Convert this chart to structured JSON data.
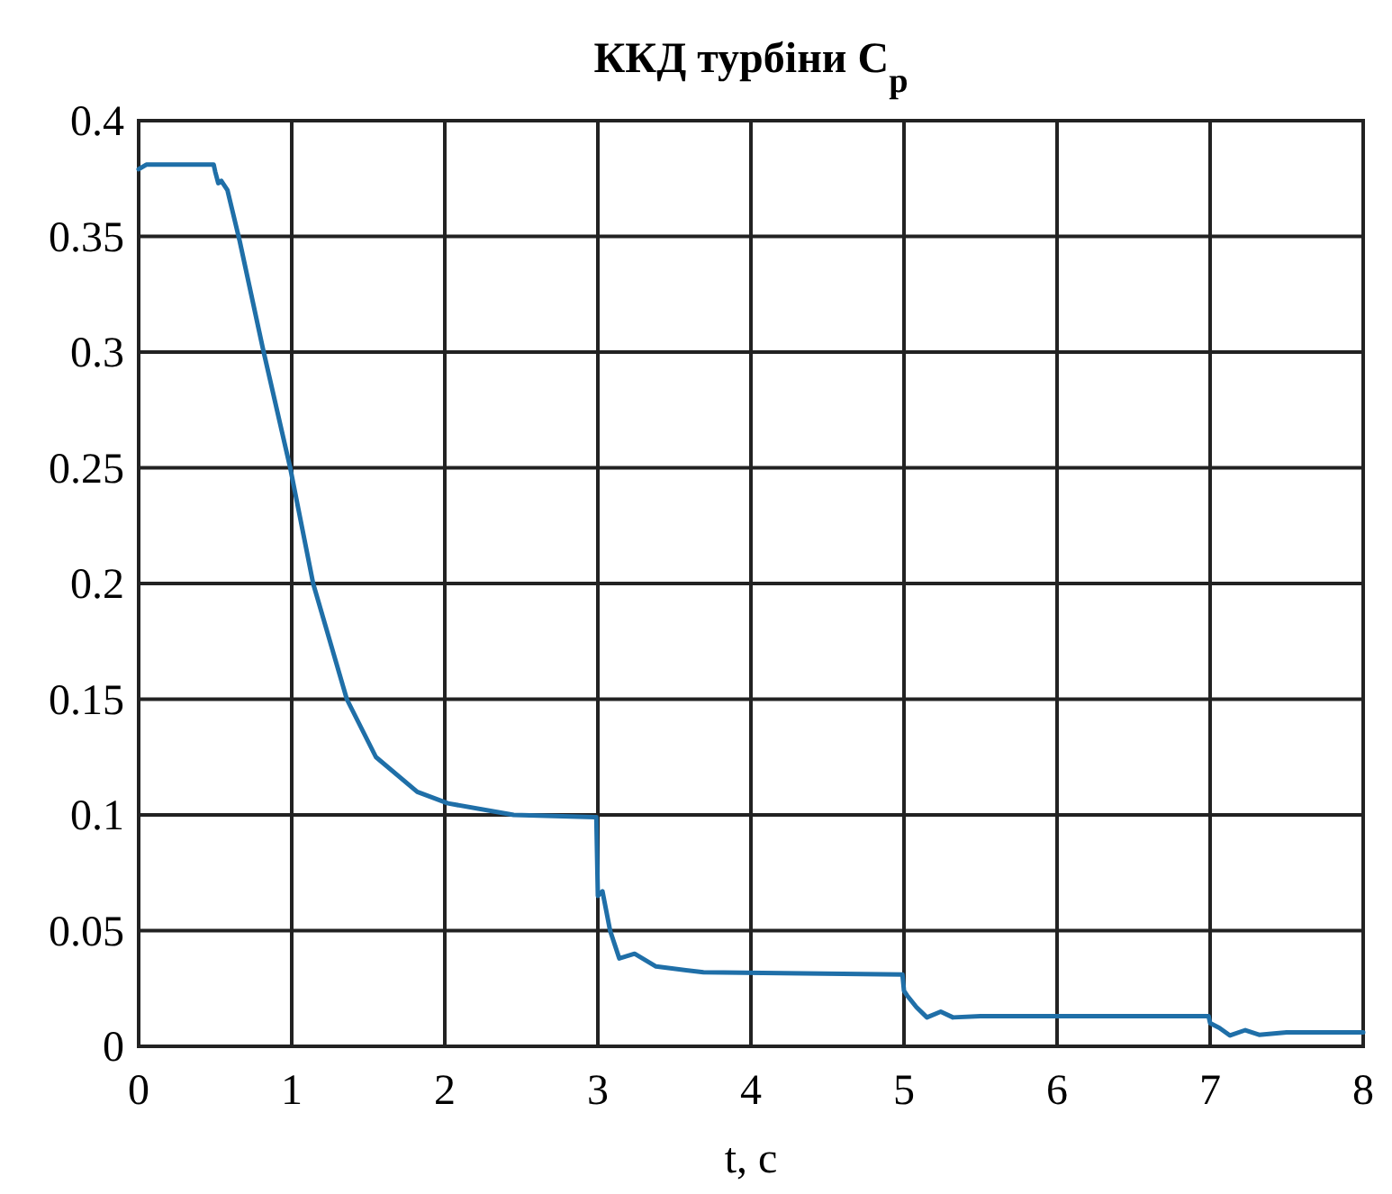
{
  "chart_data": {
    "type": "line",
    "title": "ККД турбіни C$_{p}$",
    "xlabel": "t, с",
    "xlim": [
      0,
      8
    ],
    "xticks": [
      0,
      1,
      2,
      3,
      4,
      5,
      6,
      7,
      8
    ],
    "ylim": [
      0,
      0.4
    ],
    "yticks": [
      0,
      0.05,
      0.1,
      0.15,
      0.2,
      0.25,
      0.3,
      0.35,
      0.4
    ],
    "grid": true,
    "marker": "none",
    "line_style": "solid",
    "series": [
      {
        "color": "#1f6fa8",
        "x": [
          0,
          0.05,
          0.2,
          0.49,
          0.5,
          0.52,
          0.54,
          0.58,
          0.66,
          0.81,
          0.99,
          1.14,
          1.36,
          1.55,
          1.82,
          2.02,
          2.45,
          2.98,
          2.99,
          3.0,
          3.03,
          3.08,
          3.14,
          3.24,
          3.38,
          3.69,
          4.99,
          5.0,
          5.02,
          5.08,
          5.15,
          5.24,
          5.32,
          5.5,
          6.99,
          7.0,
          7.06,
          7.13,
          7.23,
          7.32,
          7.5,
          8
        ],
        "values": [
          0.379,
          0.381,
          0.381,
          0.381,
          0.378,
          0.373,
          0.374,
          0.37,
          0.348,
          0.302,
          0.25,
          0.2,
          0.15,
          0.125,
          0.11,
          0.105,
          0.1,
          0.099,
          0.099,
          0.065,
          0.067,
          0.05,
          0.038,
          0.04,
          0.0345,
          0.032,
          0.031,
          0.024,
          0.022,
          0.017,
          0.0125,
          0.015,
          0.0125,
          0.013,
          0.013,
          0.01,
          0.008,
          0.0047,
          0.007,
          0.005,
          0.006,
          0.006
        ]
      }
    ]
  }
}
